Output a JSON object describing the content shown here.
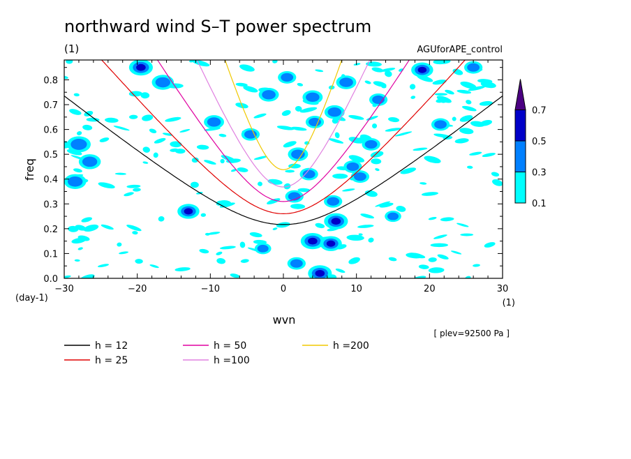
{
  "chart_data": {
    "type": "heatmap",
    "title": "northward wind S–T power spectrum",
    "subtitle": "(1)",
    "experiment": "AGUforAPE_control",
    "xlabel": "wvn",
    "ylabel": "freq",
    "x_unit": "(1)",
    "y_unit": "(day-1)",
    "level_note": "[ plev=92500 Pa ]",
    "xlim": [
      -30,
      30
    ],
    "ylim": [
      0,
      0.88
    ],
    "x_ticks": [
      -30,
      -20,
      -10,
      0,
      10,
      20,
      30
    ],
    "x_tick_labels": [
      "−30",
      "−20",
      "−10",
      "0",
      "10",
      "20",
      "30"
    ],
    "y_ticks": [
      0.0,
      0.1,
      0.2,
      0.3,
      0.4,
      0.5,
      0.6,
      0.7,
      0.8
    ],
    "y_tick_labels": [
      "0.0",
      "0.1",
      "0.2",
      "0.3",
      "0.4",
      "0.5",
      "0.6",
      "0.7",
      "0.8"
    ],
    "colorbar": {
      "levels": [
        0.1,
        0.3,
        0.5,
        0.7
      ],
      "labels": [
        "0.1",
        "0.3",
        "0.5",
        "0.7"
      ],
      "colors": [
        "#00ffff",
        "#0080ff",
        "#0000c8",
        "#4b0082"
      ]
    },
    "series": [
      {
        "name": "h = 12",
        "h": 12,
        "color": "#000000"
      },
      {
        "name": "h = 25",
        "h": 25,
        "color": "#e00000"
      },
      {
        "name": "h = 50",
        "h": 50,
        "color": "#e000a0"
      },
      {
        "name": "h =100",
        "h": 100,
        "color": "#e080e0"
      },
      {
        "name": "h =200",
        "h": 200,
        "color": "#f0c800"
      }
    ],
    "blobs": [
      {
        "x": -28,
        "y": 0.54,
        "r": 1.3,
        "level": 2
      },
      {
        "x": -26.5,
        "y": 0.47,
        "r": 1.2,
        "level": 2
      },
      {
        "x": -28.5,
        "y": 0.39,
        "r": 1.2,
        "level": 2
      },
      {
        "x": -19.5,
        "y": 0.85,
        "r": 1.3,
        "level": 3
      },
      {
        "x": -16.5,
        "y": 0.79,
        "r": 1.2,
        "level": 2
      },
      {
        "x": -13,
        "y": 0.27,
        "r": 1.2,
        "level": 3
      },
      {
        "x": -9.5,
        "y": 0.63,
        "r": 1.1,
        "level": 2
      },
      {
        "x": -4.5,
        "y": 0.58,
        "r": 1.0,
        "level": 2
      },
      {
        "x": -2,
        "y": 0.74,
        "r": 1.1,
        "level": 2
      },
      {
        "x": 0.5,
        "y": 0.81,
        "r": 1.0,
        "level": 2
      },
      {
        "x": 4,
        "y": 0.73,
        "r": 1.1,
        "level": 2
      },
      {
        "x": 7,
        "y": 0.67,
        "r": 1.1,
        "level": 2
      },
      {
        "x": 4.3,
        "y": 0.63,
        "r": 1.0,
        "level": 2
      },
      {
        "x": 8.6,
        "y": 0.79,
        "r": 1.1,
        "level": 2
      },
      {
        "x": 9.5,
        "y": 0.45,
        "r": 1.0,
        "level": 2
      },
      {
        "x": 13,
        "y": 0.72,
        "r": 1.0,
        "level": 2
      },
      {
        "x": 19,
        "y": 0.84,
        "r": 1.2,
        "level": 3
      },
      {
        "x": 21.5,
        "y": 0.62,
        "r": 1.0,
        "level": 2
      },
      {
        "x": 26,
        "y": 0.85,
        "r": 1.0,
        "level": 2
      },
      {
        "x": 2,
        "y": 0.5,
        "r": 1.1,
        "level": 2
      },
      {
        "x": 3.5,
        "y": 0.42,
        "r": 1.0,
        "level": 2
      },
      {
        "x": 1.5,
        "y": 0.33,
        "r": 1.0,
        "level": 2
      },
      {
        "x": 4,
        "y": 0.15,
        "r": 1.3,
        "level": 3
      },
      {
        "x": 6.5,
        "y": 0.14,
        "r": 1.2,
        "level": 3
      },
      {
        "x": 7.2,
        "y": 0.23,
        "r": 1.3,
        "level": 3
      },
      {
        "x": 5,
        "y": 0.02,
        "r": 1.3,
        "level": 3
      },
      {
        "x": 1.8,
        "y": 0.06,
        "r": 1.0,
        "level": 2
      },
      {
        "x": -2.8,
        "y": 0.12,
        "r": 0.9,
        "level": 2
      },
      {
        "x": 6.8,
        "y": 0.31,
        "r": 1.0,
        "level": 2
      },
      {
        "x": 10.5,
        "y": 0.41,
        "r": 1.0,
        "level": 2
      },
      {
        "x": 12,
        "y": 0.54,
        "r": 1.0,
        "level": 2
      },
      {
        "x": 15,
        "y": 0.25,
        "r": 0.9,
        "level": 2
      }
    ]
  },
  "legend_items": [
    {
      "label": "h = 12",
      "color": "#000000"
    },
    {
      "label": "h = 25",
      "color": "#e00000"
    },
    {
      "label": "h = 50",
      "color": "#e000a0"
    },
    {
      "label": "h =100",
      "color": "#e080e0"
    },
    {
      "label": "h =200",
      "color": "#f0c800"
    }
  ]
}
